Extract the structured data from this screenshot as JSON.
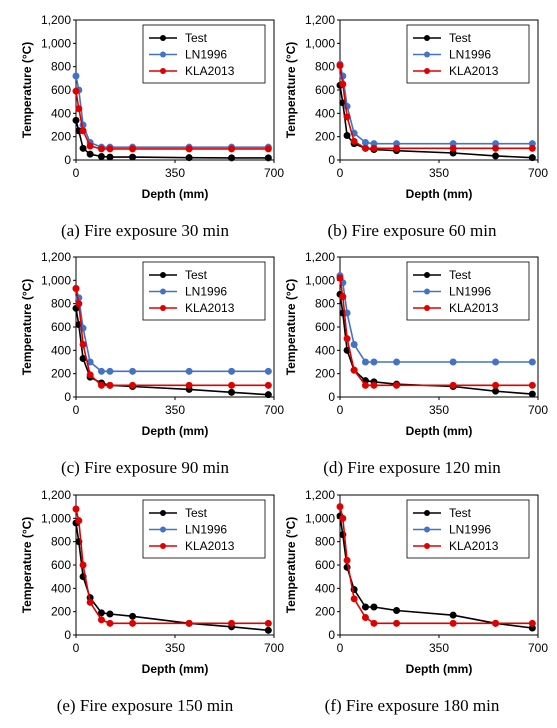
{
  "chart_data": [
    {
      "type": "line",
      "caption": "(a) Fire exposure 30 min",
      "xlabel": "Depth (mm)",
      "ylabel": "Temperature (°C)",
      "xlim": [
        0,
        700
      ],
      "ylim": [
        0,
        1200
      ],
      "xticks": [
        "0",
        "350",
        "700"
      ],
      "yticks": [
        "0",
        "200",
        "400",
        "600",
        "800",
        "1,000",
        "1,200"
      ],
      "legend_position": "top-right",
      "series": [
        {
          "name": "Test",
          "color": "#000000",
          "x": [
            0,
            10,
            25,
            50,
            90,
            120,
            200,
            400,
            550,
            680
          ],
          "y": [
            340,
            250,
            100,
            50,
            30,
            25,
            25,
            20,
            18,
            18
          ]
        },
        {
          "name": "LN1996",
          "color": "#4472c4",
          "x": [
            0,
            10,
            25,
            50,
            90,
            120,
            200,
            400,
            550,
            680
          ],
          "y": [
            720,
            600,
            300,
            150,
            110,
            110,
            110,
            110,
            110,
            110
          ]
        },
        {
          "name": "KLA2013",
          "color": "#e00000",
          "x": [
            0,
            10,
            25,
            50,
            90,
            120,
            200,
            400,
            550,
            680
          ],
          "y": [
            590,
            440,
            250,
            120,
            95,
            95,
            95,
            95,
            95,
            95
          ]
        }
      ]
    },
    {
      "type": "line",
      "caption": "(b) Fire exposure 60 min",
      "xlabel": "Depth (mm)",
      "ylabel": "Temperature (°C)",
      "xlim": [
        0,
        700
      ],
      "ylim": [
        0,
        1200
      ],
      "xticks": [
        "0",
        "350",
        "700"
      ],
      "yticks": [
        "0",
        "200",
        "400",
        "600",
        "800",
        "1,000",
        "1,200"
      ],
      "legend_position": "top-right",
      "series": [
        {
          "name": "Test",
          "color": "#000000",
          "x": [
            0,
            10,
            25,
            50,
            90,
            120,
            200,
            400,
            550,
            680
          ],
          "y": [
            640,
            490,
            210,
            140,
            100,
            90,
            80,
            60,
            35,
            20
          ]
        },
        {
          "name": "LN1996",
          "color": "#4472c4",
          "x": [
            0,
            10,
            25,
            50,
            90,
            120,
            200,
            400,
            550,
            680
          ],
          "y": [
            820,
            720,
            460,
            230,
            150,
            140,
            140,
            140,
            140,
            140
          ]
        },
        {
          "name": "KLA2013",
          "color": "#e00000",
          "x": [
            0,
            10,
            25,
            50,
            90,
            120,
            200,
            400,
            550,
            680
          ],
          "y": [
            810,
            650,
            370,
            160,
            100,
            100,
            100,
            100,
            100,
            100
          ]
        }
      ]
    },
    {
      "type": "line",
      "caption": "(c) Fire exposure 90 min",
      "xlabel": "Depth (mm)",
      "ylabel": "Temperature (°C)",
      "xlim": [
        0,
        700
      ],
      "ylim": [
        0,
        1200
      ],
      "xticks": [
        "0",
        "350",
        "700"
      ],
      "yticks": [
        "0",
        "200",
        "400",
        "600",
        "800",
        "1,000",
        "1,200"
      ],
      "legend_position": "top-right",
      "series": [
        {
          "name": "Test",
          "color": "#000000",
          "x": [
            0,
            10,
            25,
            50,
            90,
            120,
            200,
            400,
            550,
            680
          ],
          "y": [
            760,
            620,
            330,
            170,
            120,
            100,
            90,
            65,
            40,
            20
          ]
        },
        {
          "name": "LN1996",
          "color": "#4472c4",
          "x": [
            0,
            10,
            25,
            50,
            90,
            120,
            200,
            400,
            550,
            680
          ],
          "y": [
            930,
            850,
            590,
            300,
            220,
            220,
            220,
            220,
            220,
            220
          ]
        },
        {
          "name": "KLA2013",
          "color": "#e00000",
          "x": [
            0,
            10,
            25,
            50,
            90,
            120,
            200,
            400,
            550,
            680
          ],
          "y": [
            930,
            800,
            450,
            190,
            100,
            100,
            100,
            100,
            100,
            100
          ]
        }
      ]
    },
    {
      "type": "line",
      "caption": "(d) Fire exposure 120 min",
      "xlabel": "Depth (mm)",
      "ylabel": "Temperature (°C)",
      "xlim": [
        0,
        700
      ],
      "ylim": [
        0,
        1200
      ],
      "xticks": [
        "0",
        "350",
        "700"
      ],
      "yticks": [
        "0",
        "200",
        "400",
        "600",
        "800",
        "1,000",
        "1,200"
      ],
      "legend_position": "top-right",
      "series": [
        {
          "name": "Test",
          "color": "#000000",
          "x": [
            0,
            10,
            25,
            50,
            90,
            120,
            200,
            400,
            550,
            680
          ],
          "y": [
            880,
            720,
            400,
            230,
            140,
            130,
            110,
            90,
            50,
            25
          ]
        },
        {
          "name": "LN1996",
          "color": "#4472c4",
          "x": [
            0,
            10,
            25,
            50,
            90,
            120,
            200,
            400,
            550,
            680
          ],
          "y": [
            1040,
            980,
            720,
            450,
            300,
            300,
            300,
            300,
            300,
            300
          ]
        },
        {
          "name": "KLA2013",
          "color": "#e00000",
          "x": [
            0,
            10,
            25,
            50,
            90,
            120,
            200,
            400,
            550,
            680
          ],
          "y": [
            1020,
            860,
            500,
            230,
            100,
            100,
            100,
            100,
            100,
            100
          ]
        }
      ]
    },
    {
      "type": "line",
      "caption": "(e) Fire exposure 150 min",
      "xlabel": "Depth (mm)",
      "ylabel": "Temperature (°C)",
      "xlim": [
        0,
        700
      ],
      "ylim": [
        0,
        1200
      ],
      "xticks": [
        "0",
        "350",
        "700"
      ],
      "yticks": [
        "0",
        "200",
        "400",
        "600",
        "800",
        "1,000",
        "1,200"
      ],
      "legend_position": "top-right",
      "series": [
        {
          "name": "Test",
          "color": "#000000",
          "x": [
            0,
            10,
            25,
            50,
            90,
            120,
            200,
            400,
            550,
            680
          ],
          "y": [
            960,
            800,
            500,
            320,
            190,
            180,
            160,
            100,
            70,
            40
          ]
        },
        {
          "name": "KLA2013",
          "color": "#e00000",
          "x": [
            0,
            10,
            25,
            50,
            90,
            120,
            200,
            400,
            550,
            680
          ],
          "y": [
            1080,
            980,
            600,
            280,
            130,
            100,
            100,
            100,
            100,
            100
          ]
        }
      ]
    },
    {
      "type": "line",
      "caption": "(f) Fire exposure 180 min",
      "xlabel": "Depth (mm)",
      "ylabel": "Temperature (°C)",
      "xlim": [
        0,
        700
      ],
      "ylim": [
        0,
        1200
      ],
      "xticks": [
        "0",
        "350",
        "700"
      ],
      "yticks": [
        "0",
        "200",
        "400",
        "600",
        "800",
        "1,000",
        "1,200"
      ],
      "legend_position": "top-right",
      "series": [
        {
          "name": "Test",
          "color": "#000000",
          "x": [
            0,
            10,
            25,
            50,
            90,
            120,
            200,
            400,
            550,
            680
          ],
          "y": [
            1020,
            860,
            580,
            390,
            240,
            240,
            210,
            170,
            100,
            60
          ]
        },
        {
          "name": "KLA2013",
          "color": "#e00000",
          "x": [
            0,
            10,
            25,
            50,
            90,
            120,
            200,
            400,
            550,
            680
          ],
          "y": [
            1100,
            1000,
            640,
            310,
            150,
            100,
            100,
            100,
            100,
            100
          ]
        }
      ]
    }
  ],
  "legend_labels": [
    "Test",
    "LN1996",
    "KLA2013"
  ]
}
